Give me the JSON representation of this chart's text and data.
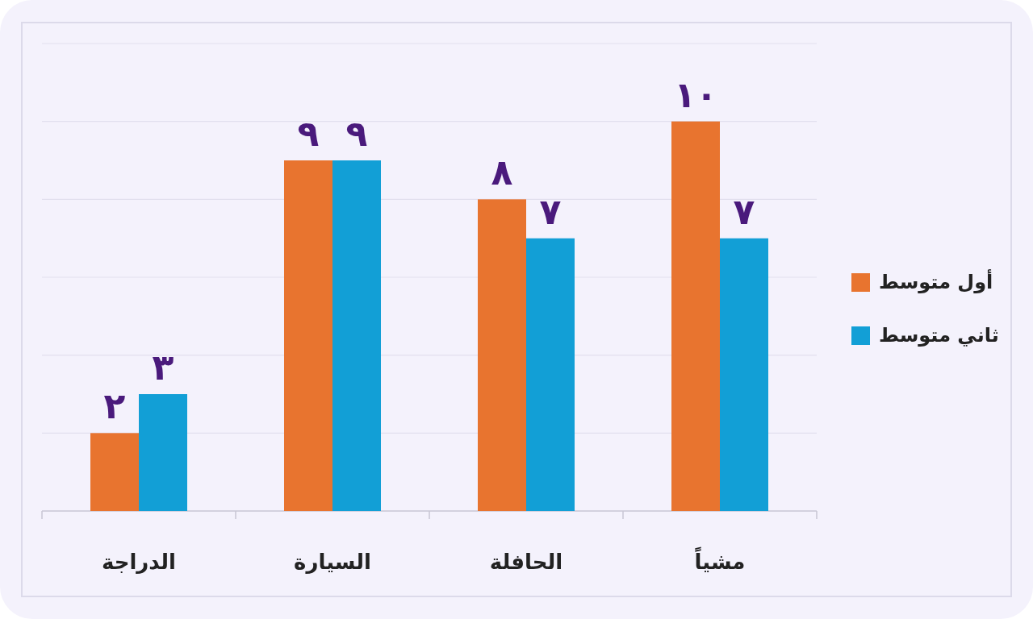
{
  "chart_data": {
    "type": "bar",
    "categories": [
      "الدراجة",
      "السيارة",
      "الحافلة",
      "مشياً"
    ],
    "series": [
      {
        "name": "أول متوسط",
        "color": "#e8742f",
        "values": [
          2,
          9,
          8,
          10
        ],
        "value_labels": [
          "٢",
          "٩",
          "٨",
          "١٠"
        ]
      },
      {
        "name": "ثاني متوسط",
        "color": "#129fd6",
        "values": [
          3,
          9,
          7,
          7
        ],
        "value_labels": [
          "٣",
          "٩",
          "٧",
          "٧"
        ]
      }
    ],
    "ylim": [
      0,
      12
    ],
    "yticks": [
      {
        "value": 0,
        "label": null
      },
      {
        "value": 2,
        "label": null
      },
      {
        "value": 4,
        "label": null
      },
      {
        "value": 6,
        "label": null
      },
      {
        "value": 8,
        "label": null
      },
      {
        "value": 10,
        "label": null
      },
      {
        "value": 12,
        "label": null
      }
    ],
    "grid": "y",
    "legend": "right",
    "tick_labels": "x"
  }
}
